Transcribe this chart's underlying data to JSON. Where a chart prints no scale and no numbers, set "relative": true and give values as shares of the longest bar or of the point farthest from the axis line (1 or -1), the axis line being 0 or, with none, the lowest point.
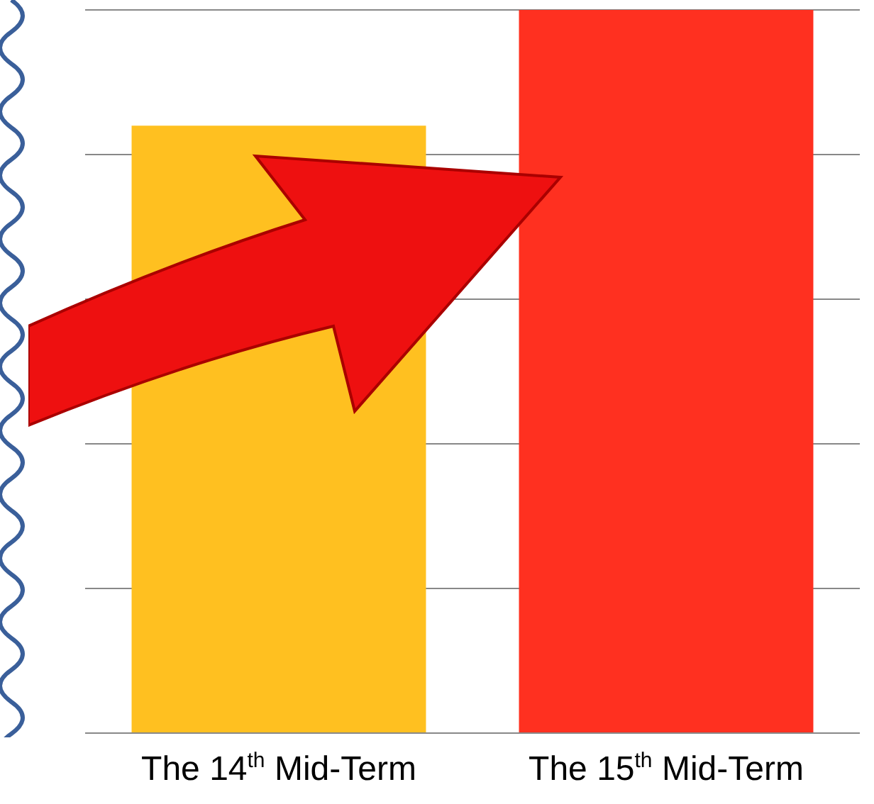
{
  "chart_data": {
    "type": "bar",
    "categories": [
      "The 14$^{th}$ Mid-Term",
      "The 15$^{th}$ Mid-Term"
    ],
    "values": [
      0.84,
      1
    ],
    "colors": [
      "#ffc020",
      "#ff3020"
    ],
    "relative": true,
    "grid": "y"
  }
}
